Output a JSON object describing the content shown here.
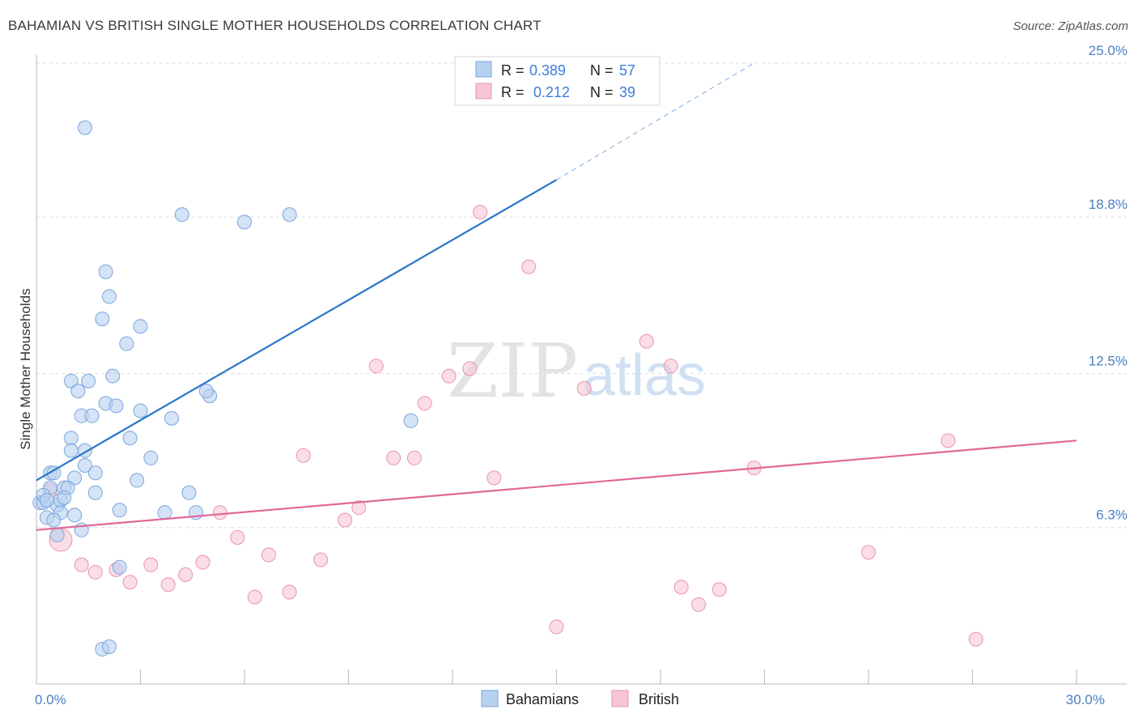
{
  "title": "BAHAMIAN VS BRITISH SINGLE MOTHER HOUSEHOLDS CORRELATION CHART",
  "source": "Source: ZipAtlas.com",
  "watermark": {
    "zip": "ZIP",
    "atlas": "atlas"
  },
  "colors": {
    "blue_fill": "#b8d1f0",
    "blue_stroke": "#7aa6dc",
    "blue_line": "#2a74c8",
    "pink_fill": "#f7c6d5",
    "pink_stroke": "#e994ae",
    "pink_line": "#e0689a",
    "grid": "#dddddd",
    "axis": "#bbbbbb",
    "tick_text": "#4a7fc1"
  },
  "legend": {
    "items": [
      {
        "r_label": "R =",
        "r_value": "0.389",
        "n_label": "N =",
        "n_value": "57"
      },
      {
        "r_label": "R =",
        "r_value": "0.212",
        "n_label": "N =",
        "n_value": "39"
      }
    ]
  },
  "bottom_legend": [
    "Bahamians",
    "British"
  ],
  "chart_data": {
    "type": "scatter",
    "title": "BAHAMIAN VS BRITISH SINGLE MOTHER HOUSEHOLDS CORRELATION CHART",
    "xlabel": "",
    "ylabel": "Single Mother Households",
    "xlim": [
      0,
      30
    ],
    "ylim": [
      0,
      25
    ],
    "x_tick_labels": [
      {
        "value": 0,
        "label": "0.0%"
      },
      {
        "value": 30,
        "label": "30.0%"
      }
    ],
    "y_tick_labels": [
      {
        "value": 6.3,
        "label": "6.3%"
      },
      {
        "value": 12.5,
        "label": "12.5%"
      },
      {
        "value": 18.8,
        "label": "18.8%"
      },
      {
        "value": 25.0,
        "label": "25.0%"
      }
    ],
    "grid": true,
    "legend_position": "top-center",
    "series": [
      {
        "name": "Bahamians",
        "color": "#b8d1f0",
        "r": 0.389,
        "n": 57,
        "trend": {
          "x": [
            0,
            15
          ],
          "y": [
            8.2,
            20.3
          ],
          "dashed_to": [
            20.7,
            25.0
          ]
        },
        "points": [
          [
            1.4,
            22.4
          ],
          [
            4.2,
            18.9
          ],
          [
            6.0,
            18.6
          ],
          [
            7.3,
            18.9
          ],
          [
            2.0,
            16.6
          ],
          [
            2.1,
            15.6
          ],
          [
            1.9,
            14.7
          ],
          [
            3.0,
            14.4
          ],
          [
            2.6,
            13.7
          ],
          [
            1.0,
            12.2
          ],
          [
            1.5,
            12.2
          ],
          [
            2.2,
            12.4
          ],
          [
            1.2,
            11.8
          ],
          [
            5.0,
            11.6
          ],
          [
            4.9,
            11.8
          ],
          [
            2.0,
            11.3
          ],
          [
            2.3,
            11.2
          ],
          [
            3.0,
            11.0
          ],
          [
            1.3,
            10.8
          ],
          [
            1.6,
            10.8
          ],
          [
            3.9,
            10.7
          ],
          [
            10.8,
            10.6
          ],
          [
            1.0,
            9.9
          ],
          [
            2.7,
            9.9
          ],
          [
            1.0,
            9.4
          ],
          [
            1.4,
            9.4
          ],
          [
            3.3,
            9.1
          ],
          [
            1.4,
            8.8
          ],
          [
            0.4,
            8.5
          ],
          [
            0.5,
            8.5
          ],
          [
            1.7,
            8.5
          ],
          [
            1.1,
            8.3
          ],
          [
            2.9,
            8.2
          ],
          [
            0.4,
            7.9
          ],
          [
            0.8,
            7.9
          ],
          [
            0.9,
            7.9
          ],
          [
            1.7,
            7.7
          ],
          [
            4.4,
            7.7
          ],
          [
            0.1,
            7.3
          ],
          [
            0.2,
            7.3
          ],
          [
            0.6,
            7.2
          ],
          [
            0.7,
            7.4
          ],
          [
            0.8,
            7.5
          ],
          [
            2.4,
            7.0
          ],
          [
            3.7,
            6.9
          ],
          [
            4.6,
            6.9
          ],
          [
            0.7,
            6.9
          ],
          [
            1.1,
            6.8
          ],
          [
            0.3,
            6.7
          ],
          [
            0.5,
            6.6
          ],
          [
            1.3,
            6.2
          ],
          [
            0.6,
            6.0
          ],
          [
            2.4,
            4.7
          ],
          [
            1.9,
            1.4
          ],
          [
            2.1,
            1.5
          ],
          [
            0.2,
            7.6
          ],
          [
            0.3,
            7.4
          ]
        ]
      },
      {
        "name": "British",
        "color": "#f7c6d5",
        "r": 0.212,
        "n": 39,
        "trend": {
          "x": [
            0,
            30
          ],
          "y": [
            6.2,
            9.8
          ]
        },
        "points": [
          [
            12.8,
            19.0
          ],
          [
            14.2,
            16.8
          ],
          [
            17.6,
            13.8
          ],
          [
            18.3,
            12.8
          ],
          [
            9.8,
            12.8
          ],
          [
            11.9,
            12.4
          ],
          [
            12.5,
            12.7
          ],
          [
            15.8,
            11.9
          ],
          [
            11.2,
            11.3
          ],
          [
            26.3,
            9.8
          ],
          [
            7.7,
            9.2
          ],
          [
            10.3,
            9.1
          ],
          [
            10.9,
            9.1
          ],
          [
            20.7,
            8.7
          ],
          [
            13.2,
            8.3
          ],
          [
            9.3,
            7.1
          ],
          [
            5.3,
            6.9
          ],
          [
            8.9,
            6.6
          ],
          [
            5.8,
            5.9
          ],
          [
            6.7,
            5.2
          ],
          [
            8.2,
            5.0
          ],
          [
            24.0,
            5.3
          ],
          [
            1.3,
            4.8
          ],
          [
            3.3,
            4.8
          ],
          [
            4.8,
            4.9
          ],
          [
            1.7,
            4.5
          ],
          [
            2.3,
            4.6
          ],
          [
            4.3,
            4.4
          ],
          [
            2.7,
            4.1
          ],
          [
            3.8,
            4.0
          ],
          [
            18.6,
            3.9
          ],
          [
            19.7,
            3.8
          ],
          [
            6.3,
            3.5
          ],
          [
            7.3,
            3.7
          ],
          [
            19.1,
            3.2
          ],
          [
            15.0,
            2.3
          ],
          [
            27.1,
            1.8
          ],
          [
            0.7,
            5.8
          ],
          [
            0.4,
            7.8
          ]
        ]
      }
    ]
  }
}
